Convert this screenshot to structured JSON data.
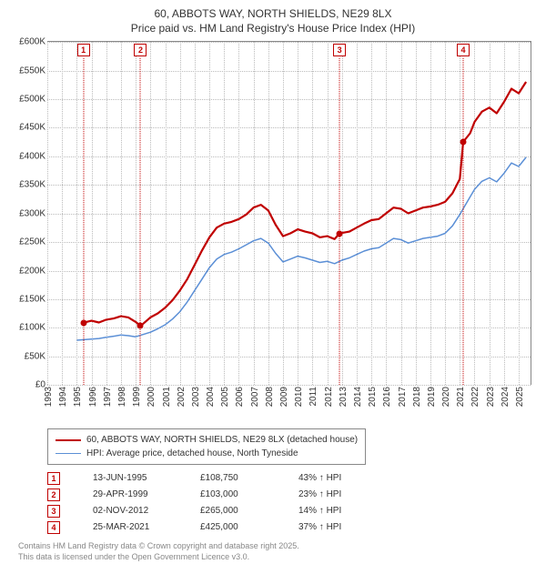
{
  "title_line1": "60, ABBOTS WAY, NORTH SHIELDS, NE29 8LX",
  "title_line2": "Price paid vs. HM Land Registry's House Price Index (HPI)",
  "chart": {
    "type": "line",
    "background_color": "#ffffff",
    "grid_color": "#bbbbbb",
    "axis_color": "#888888",
    "x_min": 1993,
    "x_max": 2025.8,
    "x_ticks": [
      1993,
      1994,
      1995,
      1996,
      1997,
      1998,
      1999,
      2000,
      2001,
      2002,
      2003,
      2004,
      2005,
      2006,
      2007,
      2008,
      2009,
      2010,
      2011,
      2012,
      2013,
      2014,
      2015,
      2016,
      2017,
      2018,
      2019,
      2020,
      2021,
      2022,
      2023,
      2024,
      2025
    ],
    "y_min": 0,
    "y_max": 600000,
    "y_ticks": [
      0,
      50000,
      100000,
      150000,
      200000,
      250000,
      300000,
      350000,
      400000,
      450000,
      500000,
      550000,
      600000
    ],
    "y_tick_labels": [
      "£0",
      "£50K",
      "£100K",
      "£150K",
      "£200K",
      "£250K",
      "£300K",
      "£350K",
      "£400K",
      "£450K",
      "£500K",
      "£550K",
      "£600K"
    ],
    "series": [
      {
        "name": "60, ABBOTS WAY, NORTH SHIELDS, NE29 8LX (detached house)",
        "color": "#c00000",
        "width": 2.2,
        "data": [
          [
            1995.45,
            108750
          ],
          [
            1996,
            112000
          ],
          [
            1996.5,
            109000
          ],
          [
            1997,
            114000
          ],
          [
            1997.5,
            116000
          ],
          [
            1998,
            120000
          ],
          [
            1998.5,
            118000
          ],
          [
            1999.0,
            110000
          ],
          [
            1999.33,
            103000
          ],
          [
            2000,
            118000
          ],
          [
            2000.5,
            125000
          ],
          [
            2001,
            135000
          ],
          [
            2001.5,
            148000
          ],
          [
            2002,
            165000
          ],
          [
            2002.5,
            185000
          ],
          [
            2003,
            210000
          ],
          [
            2003.5,
            235000
          ],
          [
            2004,
            258000
          ],
          [
            2004.5,
            275000
          ],
          [
            2005,
            282000
          ],
          [
            2005.5,
            285000
          ],
          [
            2006,
            290000
          ],
          [
            2006.5,
            298000
          ],
          [
            2007,
            310000
          ],
          [
            2007.5,
            315000
          ],
          [
            2008,
            305000
          ],
          [
            2008.5,
            280000
          ],
          [
            2009,
            260000
          ],
          [
            2009.5,
            265000
          ],
          [
            2010,
            272000
          ],
          [
            2010.5,
            268000
          ],
          [
            2011,
            265000
          ],
          [
            2011.5,
            258000
          ],
          [
            2012,
            260000
          ],
          [
            2012.5,
            255000
          ],
          [
            2012.84,
            265000
          ],
          [
            2013.5,
            268000
          ],
          [
            2014,
            275000
          ],
          [
            2014.5,
            282000
          ],
          [
            2015,
            288000
          ],
          [
            2015.5,
            290000
          ],
          [
            2016,
            300000
          ],
          [
            2016.5,
            310000
          ],
          [
            2017,
            308000
          ],
          [
            2017.5,
            300000
          ],
          [
            2018,
            305000
          ],
          [
            2018.5,
            310000
          ],
          [
            2019,
            312000
          ],
          [
            2019.5,
            315000
          ],
          [
            2020,
            320000
          ],
          [
            2020.5,
            335000
          ],
          [
            2021,
            360000
          ],
          [
            2021.23,
            425000
          ],
          [
            2021.7,
            440000
          ],
          [
            2022,
            460000
          ],
          [
            2022.5,
            478000
          ],
          [
            2023,
            485000
          ],
          [
            2023.5,
            475000
          ],
          [
            2024,
            495000
          ],
          [
            2024.5,
            518000
          ],
          [
            2025,
            510000
          ],
          [
            2025.5,
            530000
          ]
        ]
      },
      {
        "name": "HPI: Average price, detached house, North Tyneside",
        "color": "#5b8fd6",
        "width": 1.5,
        "data": [
          [
            1995,
            78000
          ],
          [
            1995.5,
            79000
          ],
          [
            1996,
            80000
          ],
          [
            1996.5,
            81000
          ],
          [
            1997,
            83000
          ],
          [
            1997.5,
            85000
          ],
          [
            1998,
            87000
          ],
          [
            1998.5,
            86000
          ],
          [
            1999,
            84000
          ],
          [
            1999.5,
            88000
          ],
          [
            2000,
            92000
          ],
          [
            2000.5,
            98000
          ],
          [
            2001,
            105000
          ],
          [
            2001.5,
            115000
          ],
          [
            2002,
            128000
          ],
          [
            2002.5,
            145000
          ],
          [
            2003,
            165000
          ],
          [
            2003.5,
            185000
          ],
          [
            2004,
            205000
          ],
          [
            2004.5,
            220000
          ],
          [
            2005,
            228000
          ],
          [
            2005.5,
            232000
          ],
          [
            2006,
            238000
          ],
          [
            2006.5,
            245000
          ],
          [
            2007,
            252000
          ],
          [
            2007.5,
            256000
          ],
          [
            2008,
            248000
          ],
          [
            2008.5,
            230000
          ],
          [
            2009,
            215000
          ],
          [
            2009.5,
            220000
          ],
          [
            2010,
            225000
          ],
          [
            2010.5,
            222000
          ],
          [
            2011,
            218000
          ],
          [
            2011.5,
            214000
          ],
          [
            2012,
            216000
          ],
          [
            2012.5,
            212000
          ],
          [
            2013,
            218000
          ],
          [
            2013.5,
            222000
          ],
          [
            2014,
            228000
          ],
          [
            2014.5,
            234000
          ],
          [
            2015,
            238000
          ],
          [
            2015.5,
            240000
          ],
          [
            2016,
            248000
          ],
          [
            2016.5,
            256000
          ],
          [
            2017,
            254000
          ],
          [
            2017.5,
            248000
          ],
          [
            2018,
            252000
          ],
          [
            2018.5,
            256000
          ],
          [
            2019,
            258000
          ],
          [
            2019.5,
            260000
          ],
          [
            2020,
            265000
          ],
          [
            2020.5,
            278000
          ],
          [
            2021,
            298000
          ],
          [
            2021.5,
            320000
          ],
          [
            2022,
            342000
          ],
          [
            2022.5,
            356000
          ],
          [
            2023,
            362000
          ],
          [
            2023.5,
            355000
          ],
          [
            2024,
            370000
          ],
          [
            2024.5,
            388000
          ],
          [
            2025,
            382000
          ],
          [
            2025.5,
            398000
          ]
        ]
      }
    ],
    "markers": [
      {
        "n": "1",
        "year": 1995.45,
        "value": 108750
      },
      {
        "n": "2",
        "year": 1999.33,
        "value": 103000
      },
      {
        "n": "3",
        "year": 2012.84,
        "value": 265000
      },
      {
        "n": "4",
        "year": 2021.23,
        "value": 425000
      }
    ]
  },
  "legend": {
    "items": [
      {
        "color": "#c00000",
        "width": 2.2,
        "label": "60, ABBOTS WAY, NORTH SHIELDS, NE29 8LX (detached house)"
      },
      {
        "color": "#5b8fd6",
        "width": 1.5,
        "label": "HPI: Average price, detached house, North Tyneside"
      }
    ]
  },
  "sales": [
    {
      "n": "1",
      "date": "13-JUN-1995",
      "price": "£108,750",
      "delta": "43% ↑ HPI"
    },
    {
      "n": "2",
      "date": "29-APR-1999",
      "price": "£103,000",
      "delta": "23% ↑ HPI"
    },
    {
      "n": "3",
      "date": "02-NOV-2012",
      "price": "£265,000",
      "delta": "14% ↑ HPI"
    },
    {
      "n": "4",
      "date": "25-MAR-2021",
      "price": "£425,000",
      "delta": "37% ↑ HPI"
    }
  ],
  "footer_line1": "Contains HM Land Registry data © Crown copyright and database right 2025.",
  "footer_line2": "This data is licensed under the Open Government Licence v3.0."
}
